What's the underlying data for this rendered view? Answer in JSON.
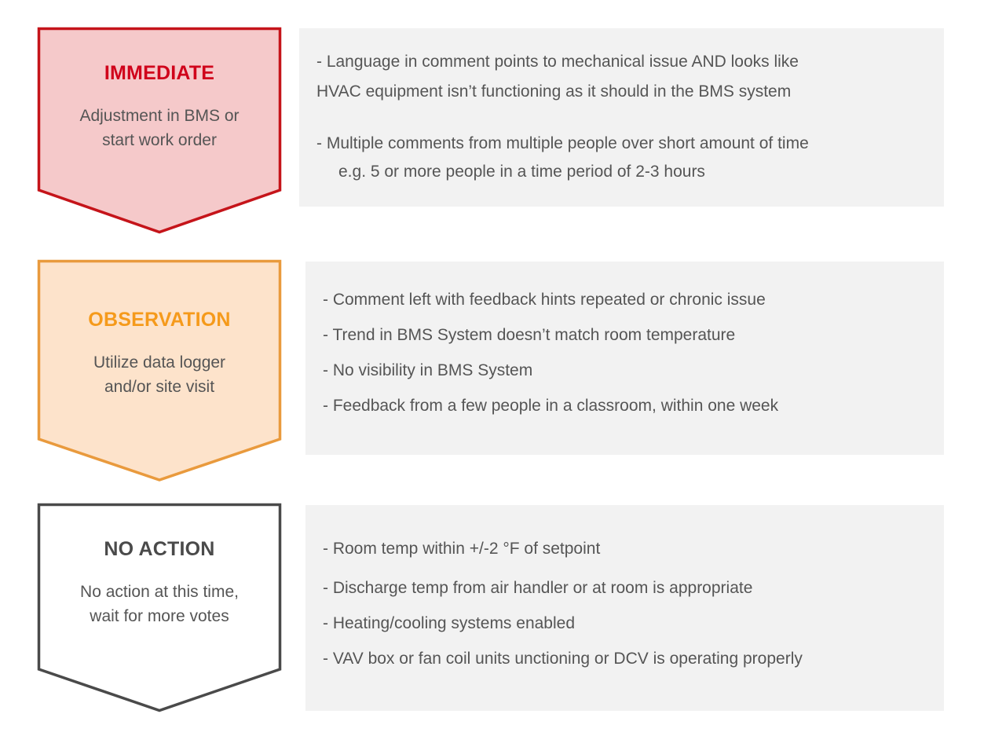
{
  "colors": {
    "immediate_stroke": "#c5141a",
    "immediate_fill": "#f5c9ca",
    "immediate_title": "#d0021b",
    "observation_stroke": "#e99a3d",
    "observation_fill": "#fde3cb",
    "observation_title": "#f59a1b",
    "no_action_stroke": "#4a4a4a",
    "no_action_fill": "#ffffff",
    "no_action_title": "#4a4a4a",
    "panel_bg": "#f2f2f2",
    "body_text": "#555555"
  },
  "tiers": [
    {
      "id": "immediate",
      "title": "IMMEDIATE",
      "description": "Adjustment in BMS or\nstart work order",
      "criteria": [
        "- Language in comment points to mechanical issue AND looks like",
        "HVAC equipment isn’t functioning as it should in the BMS system",
        "- Multiple comments from multiple people over short amount of time",
        "e.g. 5 or more people in a time period of 2-3 hours"
      ]
    },
    {
      "id": "observation",
      "title": "OBSERVATION",
      "description": "Utilize data logger\nand/or site visit",
      "criteria": [
        "- Comment left with feedback hints repeated or chronic issue",
        "- Trend in BMS System doesn’t match room temperature",
        "- No visibility in BMS System",
        "- Feedback from a few people in a classroom, within one week"
      ]
    },
    {
      "id": "no_action",
      "title": "NO ACTION",
      "description": "No action at this time,\nwait for more votes",
      "criteria": [
        "- Room temp within +/-2 °F of setpoint",
        "- Discharge temp from air handler or at room is appropriate",
        "- Heating/cooling systems enabled",
        "- VAV box or fan coil units unctioning or DCV is operating properly"
      ]
    }
  ]
}
